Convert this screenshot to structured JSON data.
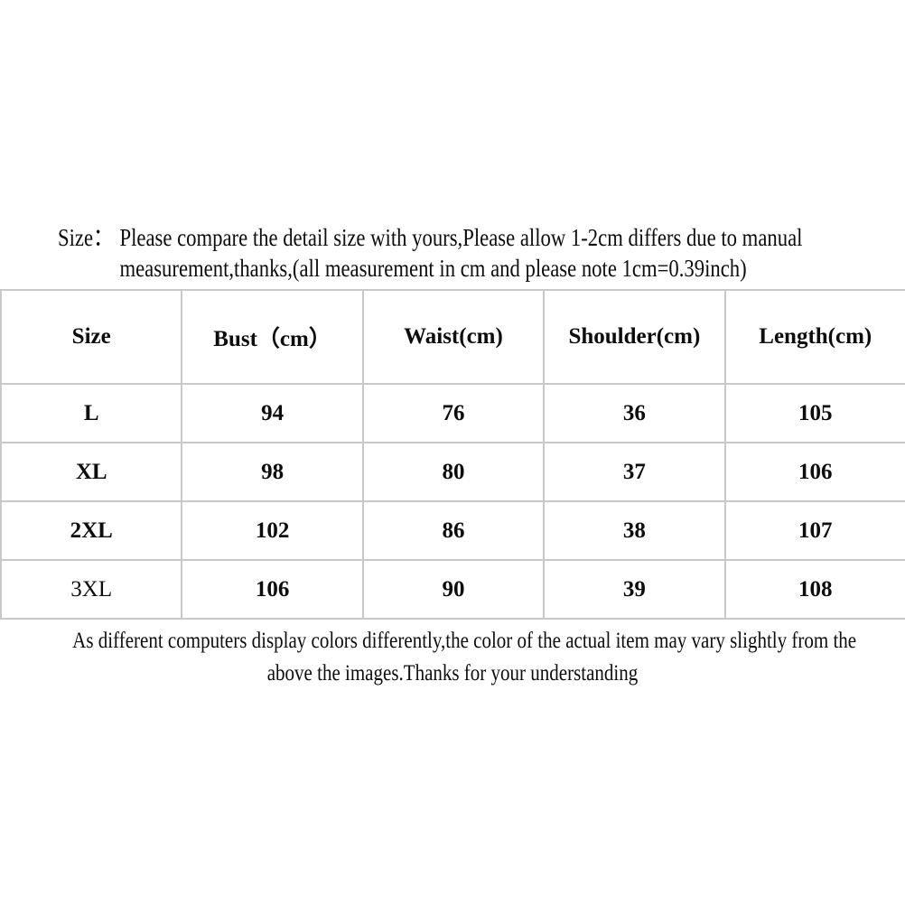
{
  "page": {
    "background_color": "#ffffff",
    "text_color": "#0d0d0d",
    "table_border_color": "#c8c8c8"
  },
  "intro": {
    "label": "Size：",
    "line1": "Please compare the detail size with yours,Please allow 1-2cm differs due to manual",
    "line2": "measurement,thanks,(all measurement in cm and please note 1cm=0.39inch)"
  },
  "chart_data": {
    "type": "table",
    "title": "Garment size chart (measurements in cm)",
    "columns": [
      "Size",
      "Bust（cm）",
      "Waist(cm)",
      "Shoulder(cm)",
      "Length(cm)"
    ],
    "rows": [
      [
        "L",
        "94",
        "76",
        "36",
        "105"
      ],
      [
        "XL",
        "98",
        "80",
        "37",
        "106"
      ],
      [
        "2XL",
        "102",
        "86",
        "38",
        "107"
      ],
      [
        "3XL",
        "106",
        "90",
        "39",
        "108"
      ]
    ]
  },
  "footer": {
    "line1": "As different computers display colors differently,the color of the actual item may vary slightly from the",
    "line2": "above the images.Thanks for your understanding"
  }
}
